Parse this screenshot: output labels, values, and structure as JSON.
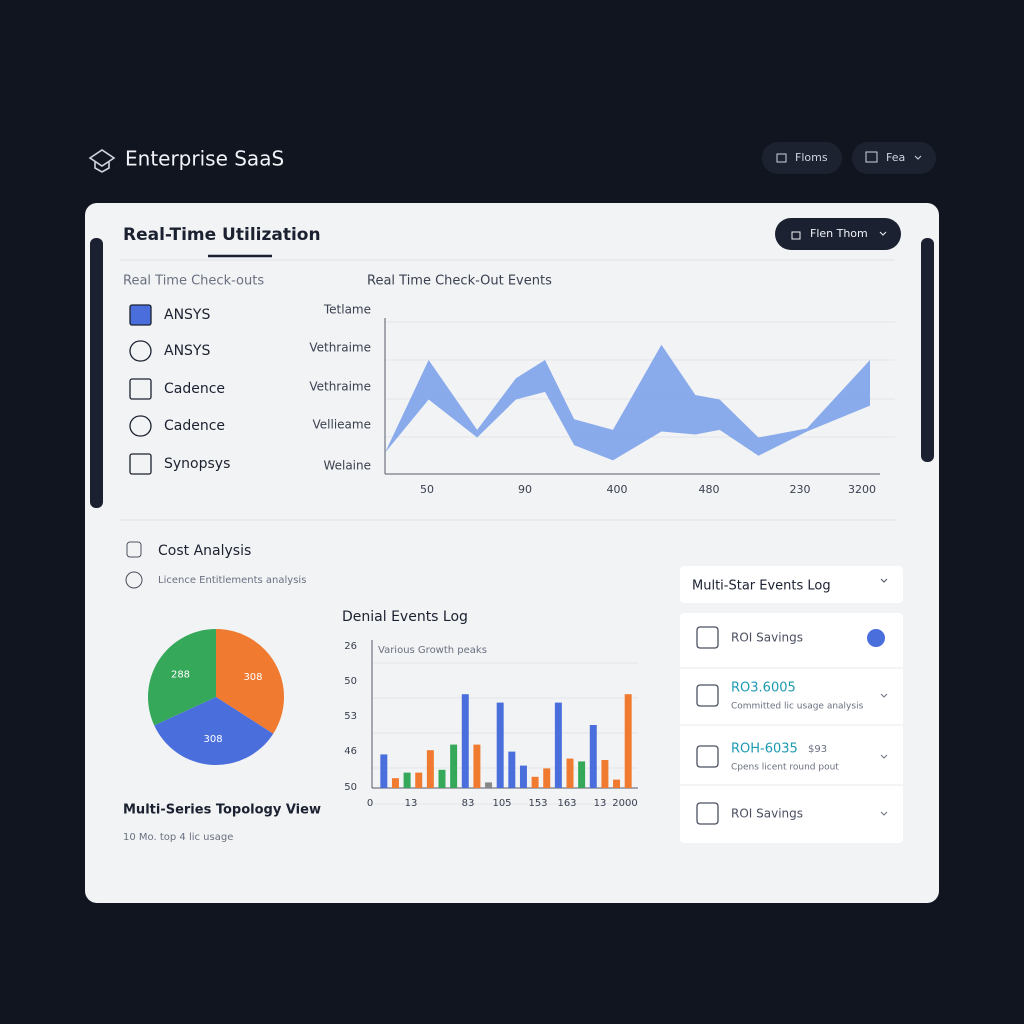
{
  "header": {
    "brand": "Enterprise SaaS",
    "buttons": [
      "Floms",
      "Fea"
    ]
  },
  "panel": {
    "title": "Real-Time Utilization",
    "dropdown": "Flen Thom"
  },
  "licenses": {
    "heading": "Real Time Check-outs",
    "items": [
      "ANSYS",
      "ANSYS",
      "Cadence",
      "Cadence",
      "Synopsys"
    ]
  },
  "checkout_chart": {
    "type": "area",
    "title": "Real Time Check-Out Events",
    "color": "#7ea3ea",
    "y_labels": [
      "Tetlame",
      "Vethraime",
      "Vethraime",
      "Vellieame",
      "Welaine"
    ],
    "x_labels": [
      "50",
      "90",
      "400",
      "480",
      "230",
      "3200"
    ],
    "x": [
      0,
      9,
      19,
      27,
      33,
      39,
      47,
      57,
      64,
      69,
      77,
      87,
      100
    ],
    "upper": [
      14,
      75,
      29,
      63,
      75,
      36,
      29,
      85,
      52,
      49,
      24,
      30,
      75
    ],
    "lower": [
      14,
      49,
      24,
      49,
      54,
      19,
      9,
      28,
      26,
      29,
      12,
      28,
      45
    ],
    "xlim": [
      0,
      100
    ],
    "ylim": [
      0,
      100
    ]
  },
  "cost_analysis": {
    "title": "Cost Analysis",
    "subtitle": "Licence Entitlements analysis",
    "pie": {
      "type": "pie",
      "values": [
        308,
        308,
        288
      ],
      "value_labels": [
        "308",
        "308",
        "288"
      ],
      "colors": [
        "#f07a30",
        "#4a6fdc",
        "#36a85a"
      ]
    },
    "caption": "Multi-Series Topology View",
    "note": "10 Mo. top 4 lic usage"
  },
  "denial_chart": {
    "type": "bar",
    "title": "Denial Events Log",
    "legend": "Various Growth peaks",
    "y_labels": [
      "26",
      "50",
      "53",
      "46",
      "50"
    ],
    "x_labels": [
      "0",
      "13",
      "83",
      "105",
      "153",
      "163",
      "13",
      "2000"
    ],
    "values": [
      24,
      7,
      11,
      11,
      27,
      13,
      31,
      67,
      31,
      4,
      61,
      26,
      16,
      8,
      14,
      61,
      21,
      19,
      45,
      20,
      6,
      67
    ],
    "colors": [
      "#4a6fdc",
      "#f07a30",
      "#36a85a",
      "#f07a30",
      "#f07a30",
      "#36a85a",
      "#36a85a",
      "#4a6fdc",
      "#f07a30",
      "#888888",
      "#4a6fdc",
      "#4a6fdc",
      "#4a6fdc",
      "#f07a30",
      "#f07a30",
      "#4a6fdc",
      "#f07a30",
      "#36a85a",
      "#4a6fdc",
      "#f07a30",
      "#f07a30",
      "#f07a30"
    ],
    "ylim": [
      0,
      100
    ]
  },
  "events_log": {
    "title": "Multi-Star Events Log",
    "items": [
      {
        "title": "ROI Savings"
      },
      {
        "title": "RO3.6005",
        "desc": "Committed lic usage analysis"
      },
      {
        "title": "ROH-6035",
        "extra": "$93",
        "desc": "Cpens licent round pout"
      },
      {
        "title": "ROI Savings"
      }
    ]
  }
}
